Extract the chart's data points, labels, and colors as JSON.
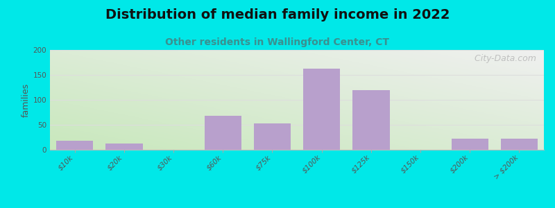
{
  "title": "Distribution of median family income in 2022",
  "subtitle": "Other residents in Wallingford Center, CT",
  "watermark": " City-Data.com",
  "ylabel": "families",
  "categories": [
    "$10k",
    "$20k",
    "$30k",
    "$60k",
    "$75k",
    "$100k",
    "$125k",
    "$150k",
    "$200k",
    "> $200k"
  ],
  "values": [
    18,
    13,
    0,
    68,
    53,
    163,
    120,
    0,
    22,
    22
  ],
  "bar_color": "#b8a0cc",
  "ylim": [
    0,
    200
  ],
  "yticks": [
    0,
    50,
    100,
    150,
    200
  ],
  "background_outer": "#00e8e8",
  "background_inner_topleft": "#d5eece",
  "background_inner_botleft": "#c8e8bc",
  "background_inner_right": "#efefef",
  "grid_color": "#dddddd",
  "title_fontsize": 14,
  "title_color": "#111111",
  "subtitle_fontsize": 10,
  "subtitle_color": "#3a9090",
  "ylabel_fontsize": 9,
  "tick_label_fontsize": 7.5,
  "watermark_color": "#b8b8b8",
  "watermark_fontsize": 9
}
